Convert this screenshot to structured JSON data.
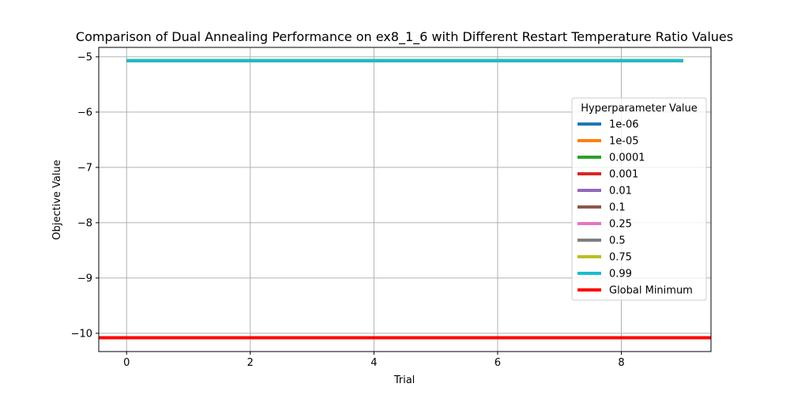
{
  "chart_data": {
    "type": "line",
    "title": "Comparison of Dual Annealing Performance on ex8_1_6 with Different Restart Temperature Ratio Values",
    "xlabel": "Trial",
    "ylabel": "Objective Value",
    "xlim": [
      -0.45,
      9.45
    ],
    "ylim": [
      -10.33,
      -4.83
    ],
    "x_ticks": [
      0,
      2,
      4,
      6,
      8
    ],
    "y_ticks": [
      -5,
      -6,
      -7,
      -8,
      -9,
      -10
    ],
    "x_tick_labels": [
      "0",
      "2",
      "4",
      "6",
      "8"
    ],
    "y_tick_labels": [
      "−5",
      "−6",
      "−7",
      "−8",
      "−9",
      "−10"
    ],
    "grid": true,
    "legend_title": "Hyperparameter Value",
    "legend_position": "center-right",
    "x": [
      0,
      1,
      2,
      3,
      4,
      5,
      6,
      7,
      8,
      9
    ],
    "series": [
      {
        "name": "1e-06",
        "color": "#1f77b4",
        "values": [
          -5.07,
          -5.07,
          -5.07,
          -5.07,
          -5.07,
          -5.07,
          -5.07,
          -5.07,
          -5.07,
          -5.07
        ]
      },
      {
        "name": "1e-05",
        "color": "#ff7f0e",
        "values": [
          -5.07,
          -5.07,
          -5.07,
          -5.07,
          -5.07,
          -5.07,
          -5.07,
          -5.07,
          -5.07,
          -5.07
        ]
      },
      {
        "name": "0.0001",
        "color": "#2ca02c",
        "values": [
          -5.07,
          -5.07,
          -5.07,
          -5.07,
          -5.07,
          -5.07,
          -5.07,
          -5.07,
          -5.07,
          -5.07
        ]
      },
      {
        "name": "0.001",
        "color": "#d62728",
        "values": [
          -5.07,
          -5.07,
          -5.07,
          -5.07,
          -5.07,
          -5.07,
          -5.07,
          -5.07,
          -5.07,
          -5.07
        ]
      },
      {
        "name": "0.01",
        "color": "#9467bd",
        "values": [
          -5.07,
          -5.07,
          -5.07,
          -5.07,
          -5.07,
          -5.07,
          -5.07,
          -5.07,
          -5.07,
          -5.07
        ]
      },
      {
        "name": "0.1",
        "color": "#8c564b",
        "values": [
          -5.07,
          -5.07,
          -5.07,
          -5.07,
          -5.07,
          -5.07,
          -5.07,
          -5.07,
          -5.07,
          -5.07
        ]
      },
      {
        "name": "0.25",
        "color": "#e377c2",
        "values": [
          -5.07,
          -5.07,
          -5.07,
          -5.07,
          -5.07,
          -5.07,
          -5.07,
          -5.07,
          -5.07,
          -5.07
        ]
      },
      {
        "name": "0.5",
        "color": "#7f7f7f",
        "values": [
          -5.07,
          -5.07,
          -5.07,
          -5.07,
          -5.07,
          -5.07,
          -5.07,
          -5.07,
          -5.07,
          -5.07
        ]
      },
      {
        "name": "0.75",
        "color": "#bcbd22",
        "values": [
          -5.07,
          -5.07,
          -5.07,
          -5.07,
          -5.07,
          -5.07,
          -5.07,
          -5.07,
          -5.07,
          -5.07
        ]
      },
      {
        "name": "0.99",
        "color": "#17becf",
        "values": [
          -5.07,
          -5.07,
          -5.07,
          -5.07,
          -5.07,
          -5.07,
          -5.07,
          -5.07,
          -5.07,
          -5.07
        ]
      }
    ],
    "reference_line": {
      "name": "Global Minimum",
      "color": "#ff0000",
      "value": -10.08
    }
  }
}
